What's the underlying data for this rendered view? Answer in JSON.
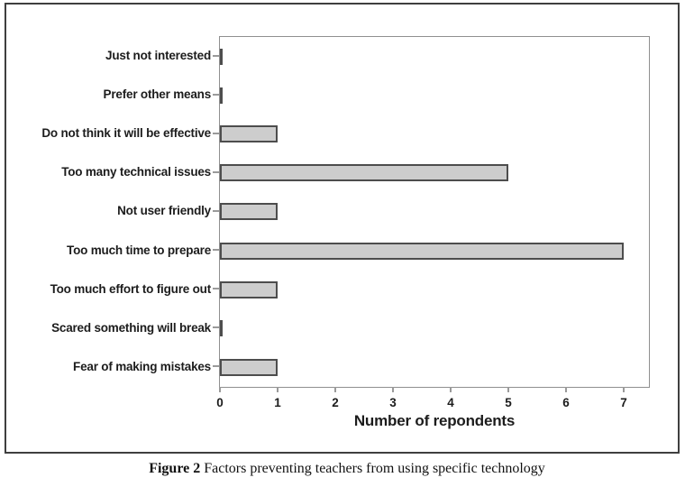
{
  "figure": {
    "caption_label": "Figure 2",
    "caption_text": " Factors preventing teachers from using specific technology"
  },
  "chart_data": {
    "type": "bar",
    "orientation": "horizontal",
    "title": "",
    "categories": [
      "Just not interested",
      "Prefer other means",
      "Do not think it will be effective",
      "Too many technical issues",
      "Not user friendly",
      "Too much time to prepare",
      "Too much effort to figure out",
      "Scared something will break",
      "Fear of making mistakes"
    ],
    "values": [
      0,
      0,
      1,
      5,
      1,
      7,
      1,
      0,
      1
    ],
    "xlabel": "Number of repondents",
    "ylabel": "",
    "x_ticks": [
      0,
      1,
      2,
      3,
      4,
      5,
      6,
      7
    ],
    "xlim": [
      0,
      7.5
    ],
    "grid": false,
    "legend": null,
    "colors": {
      "bar_fill": "#cdcdcd",
      "bar_border": "#4d4d4d",
      "plot_border": "#8f8f8f",
      "frame_border": "#3f3f3f",
      "text": "#1c1c1c"
    }
  }
}
